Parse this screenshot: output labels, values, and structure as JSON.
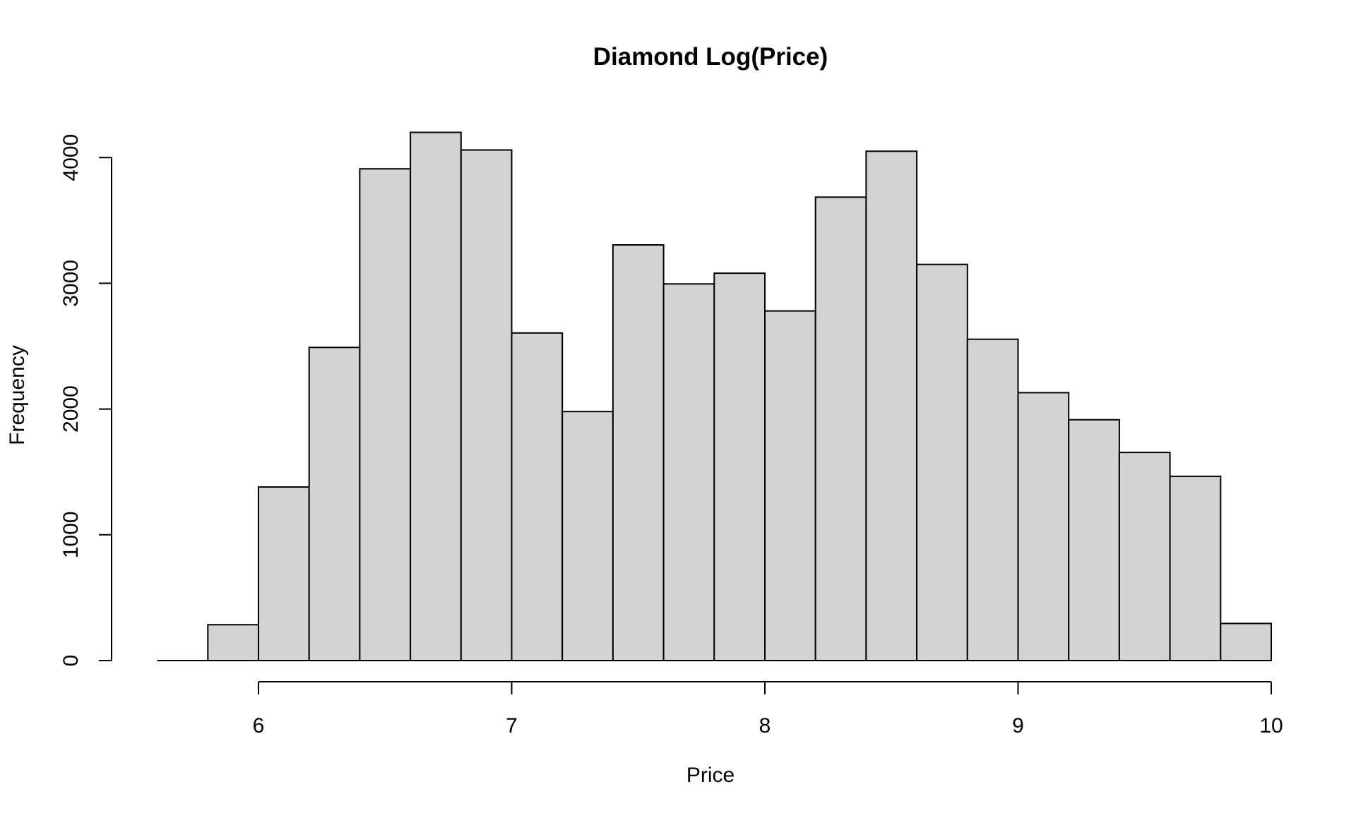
{
  "chart_data": {
    "type": "bar",
    "title": "Diamond Log(Price)",
    "xlabel": "Price",
    "ylabel": "Frequency",
    "xlim": [
      5.6,
      10
    ],
    "ylim": [
      0,
      4200
    ],
    "x_ticks": [
      6,
      7,
      8,
      9,
      10
    ],
    "y_ticks": [
      0,
      1000,
      2000,
      3000,
      4000
    ],
    "bin_edges": [
      5.8,
      6.0,
      6.2,
      6.4,
      6.6,
      6.8,
      7.0,
      7.2,
      7.4,
      7.6,
      7.8,
      8.0,
      8.2,
      8.4,
      8.6,
      8.8,
      9.0,
      9.2,
      9.4,
      9.6,
      9.8,
      10.0
    ],
    "values": [
      285,
      1380,
      2490,
      3910,
      4200,
      4060,
      2605,
      1980,
      3305,
      2995,
      3080,
      2780,
      3685,
      4050,
      3150,
      2555,
      2130,
      1915,
      1655,
      1465,
      295
    ],
    "grid": false,
    "legend": "none",
    "colors": {
      "bar_fill": "#d3d3d3",
      "bar_stroke": "#000000"
    }
  }
}
